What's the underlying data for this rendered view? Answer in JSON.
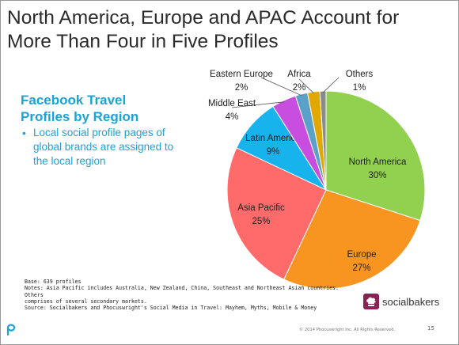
{
  "slide": {
    "title_lines": [
      "North America, Europe and APAC Account for",
      "More Than Four in Five Profiles"
    ],
    "subtitle_lines": [
      "Facebook Travel",
      "Profiles by Region"
    ],
    "bullet_lines": [
      "Local social profile pages of",
      "global brands are assigned to",
      "the local region"
    ],
    "notes_lines": [
      "Base: 639 profiles",
      "Notes: Asia Pacific includes Australia, New Zealand, China, Southeast and Northeast Asian countries. Others",
      "comprises of several secondary markets.",
      "Source: Socialbakers and Phocuswright's Social Media in Travel: Mayhem, Myths, Mobile & Money"
    ],
    "brand_name": "socialbakers",
    "copyright": "© 2014 Phocuswright Inc. All Rights Reserved.",
    "page_number": "15"
  },
  "chart_data": {
    "type": "pie",
    "title": "",
    "start_angle_deg": 0,
    "direction": "clockwise",
    "slices": [
      {
        "label": "North America",
        "value": 30,
        "display": "30%",
        "color": "#92d050"
      },
      {
        "label": "Europe",
        "value": 27,
        "display": "27%",
        "color": "#f79520"
      },
      {
        "label": "Asia Pacific",
        "value": 25,
        "display": "25%",
        "color": "#ff6b6b"
      },
      {
        "label": "Latin America",
        "value": 9,
        "display": "9%",
        "color": "#17b3ec"
      },
      {
        "label": "Middle East",
        "value": 4,
        "display": "4%",
        "color": "#c84ee0"
      },
      {
        "label": "Eastern Europe",
        "value": 2,
        "display": "2%",
        "color": "#5aa1c9"
      },
      {
        "label": "Africa",
        "value": 2,
        "display": "2%",
        "color": "#e0a800"
      },
      {
        "label": "Others",
        "value": 1,
        "display": "1%",
        "color": "#8a8a8a"
      }
    ]
  }
}
